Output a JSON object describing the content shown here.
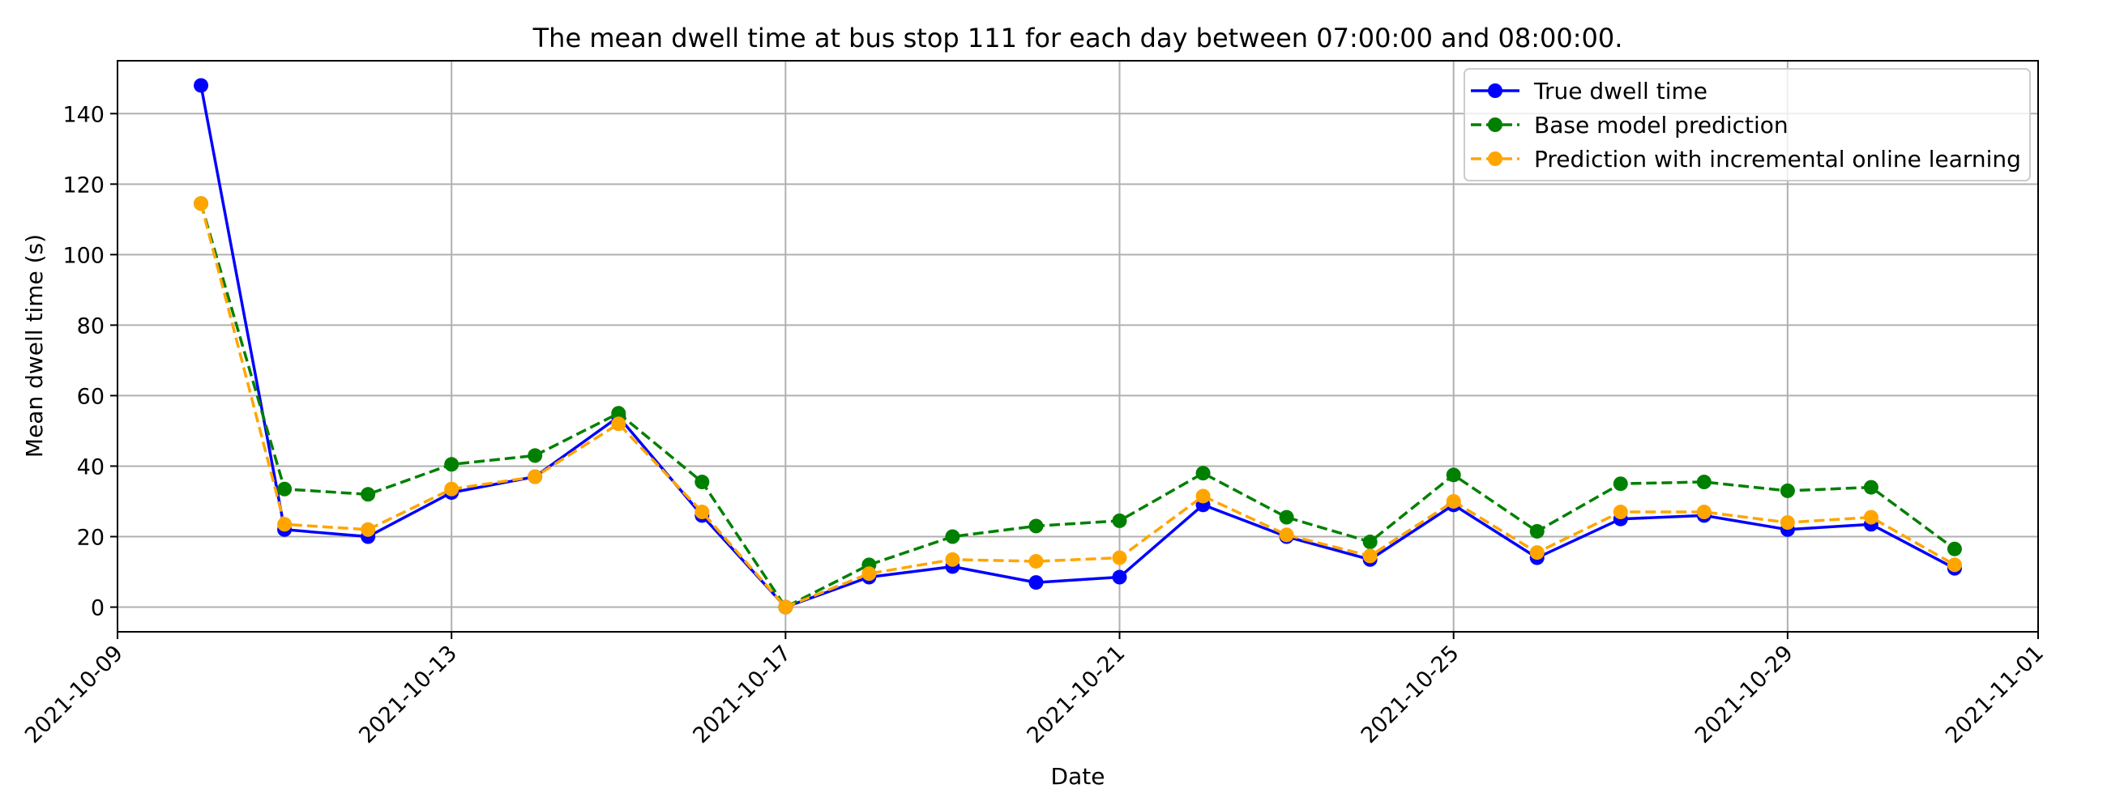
{
  "chart_data": {
    "type": "line",
    "title": "The mean dwell time at bus stop 111 for each day between 07:00:00 and 08:00:00.",
    "xlabel": "Date",
    "ylabel": "Mean dwell time (s)",
    "xlim": [
      "2021-10-09",
      "2021-11-01"
    ],
    "ylim": [
      -7,
      155
    ],
    "xticks": [
      "2021-10-09",
      "2021-10-13",
      "2021-10-17",
      "2021-10-21",
      "2021-10-25",
      "2021-10-29",
      "2021-11-01"
    ],
    "yticks": [
      0,
      20,
      40,
      60,
      80,
      100,
      120,
      140
    ],
    "grid": true,
    "legend_position": "top-right",
    "x": [
      "2021-10-10",
      "2021-10-11",
      "2021-10-12",
      "2021-10-13",
      "2021-10-14",
      "2021-10-15",
      "2021-10-16",
      "2021-10-17",
      "2021-10-18",
      "2021-10-19",
      "2021-10-20",
      "2021-10-21",
      "2021-10-22",
      "2021-10-23",
      "2021-10-24",
      "2021-10-25",
      "2021-10-26",
      "2021-10-27",
      "2021-10-28",
      "2021-10-29",
      "2021-10-30",
      "2021-10-31"
    ],
    "series": [
      {
        "name": "True dwell time",
        "color": "#0000ff",
        "style": "solid",
        "values": [
          148,
          22,
          20,
          32.5,
          37,
          54,
          26,
          0,
          8.5,
          11.5,
          7,
          8.5,
          29,
          20,
          13.5,
          29,
          14,
          25,
          26,
          22,
          23.5,
          11
        ]
      },
      {
        "name": "Base model prediction",
        "color": "#008000",
        "style": "dashed",
        "values": [
          114.5,
          33.5,
          32,
          40.5,
          43,
          55,
          35.5,
          0,
          12,
          20,
          23,
          24.5,
          38,
          25.5,
          18.5,
          37.5,
          21.5,
          35,
          35.5,
          33,
          34,
          16.5
        ]
      },
      {
        "name": "Prediction with incremental online learning",
        "color": "#ffa500",
        "style": "dashed",
        "values": [
          114.5,
          23.5,
          22,
          33.5,
          37,
          52,
          27,
          0,
          9.5,
          13.5,
          13,
          14,
          31.5,
          20.5,
          14.5,
          30,
          15.5,
          27,
          27,
          24,
          25.5,
          12
        ]
      }
    ]
  }
}
